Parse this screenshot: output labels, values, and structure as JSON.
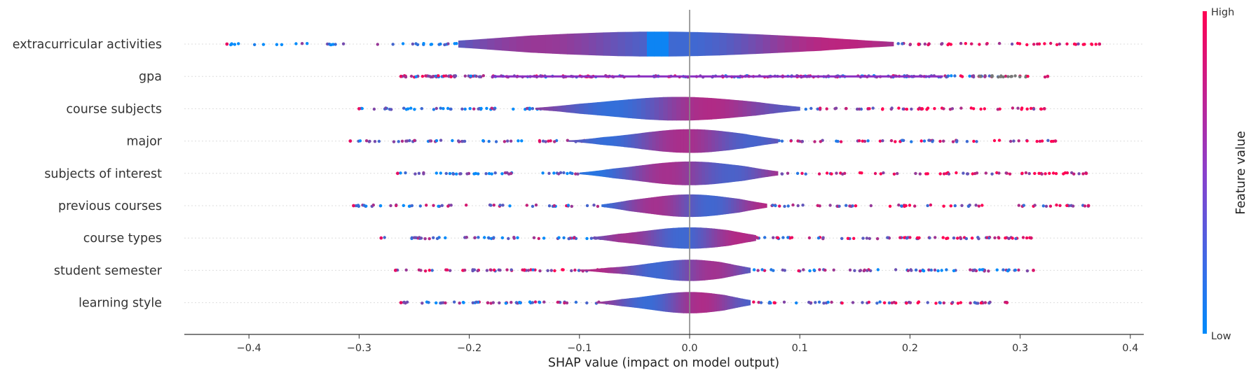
{
  "chart_data": {
    "type": "shap-violin",
    "xlabel": "SHAP value (impact on model output)",
    "xlim": [
      -0.46,
      0.42
    ],
    "xticks": [
      -0.4,
      -0.3,
      -0.2,
      -0.1,
      0.0,
      0.1,
      0.2,
      0.3,
      0.4
    ],
    "xtick_labels": [
      "−0.4",
      "−0.3",
      "−0.2",
      "−0.1",
      "0.0",
      "0.1",
      "0.2",
      "0.3",
      "0.4"
    ],
    "grid": false,
    "colorbar": {
      "label": "Feature value",
      "high_label": "High",
      "low_label": "Low",
      "low_color": "#008bfb",
      "high_color": "#ff0052"
    },
    "features": [
      {
        "name": "extracurricular activities",
        "min": -0.42,
        "max": 0.372,
        "core_min": -0.21,
        "core_max": 0.185,
        "peak": -0.03,
        "width": 0.9,
        "spread": 0.12,
        "color_trend": 1
      },
      {
        "name": "gpa",
        "min": -0.262,
        "max": 0.325,
        "core_min": -0.18,
        "core_max": 0.23,
        "peak": 0.0,
        "width": 0.12,
        "spread": 0.2,
        "color_trend": 0
      },
      {
        "name": "course subjects",
        "min": -0.3,
        "max": 0.322,
        "core_min": -0.14,
        "core_max": 0.1,
        "peak": -0.01,
        "width": 0.85,
        "spread": 0.06,
        "color_trend": 1
      },
      {
        "name": "major",
        "min": -0.308,
        "max": 0.332,
        "core_min": -0.11,
        "core_max": 0.08,
        "peak": 0.0,
        "width": 0.85,
        "spread": 0.045,
        "color_trend": 0.5
      },
      {
        "name": "subjects of interest",
        "min": -0.265,
        "max": 0.36,
        "core_min": -0.1,
        "core_max": 0.08,
        "peak": 0.0,
        "width": 0.85,
        "spread": 0.045,
        "color_trend": 1
      },
      {
        "name": "previous courses",
        "min": -0.305,
        "max": 0.362,
        "core_min": -0.08,
        "core_max": 0.07,
        "peak": 0.0,
        "width": 0.8,
        "spread": 0.04,
        "color_trend": 0.5
      },
      {
        "name": "course types",
        "min": -0.28,
        "max": 0.31,
        "core_min": -0.09,
        "core_max": 0.06,
        "peak": 0.0,
        "width": 0.75,
        "spread": 0.04,
        "color_trend": 0.5
      },
      {
        "name": "student semester",
        "min": -0.267,
        "max": 0.312,
        "core_min": -0.1,
        "core_max": 0.055,
        "peak": 0.0,
        "width": 0.75,
        "spread": 0.035,
        "color_trend": -0.5
      },
      {
        "name": "learning style",
        "min": -0.262,
        "max": 0.288,
        "core_min": -0.085,
        "core_max": 0.055,
        "peak": 0.0,
        "width": 0.75,
        "spread": 0.035,
        "color_trend": 0.5
      }
    ]
  }
}
